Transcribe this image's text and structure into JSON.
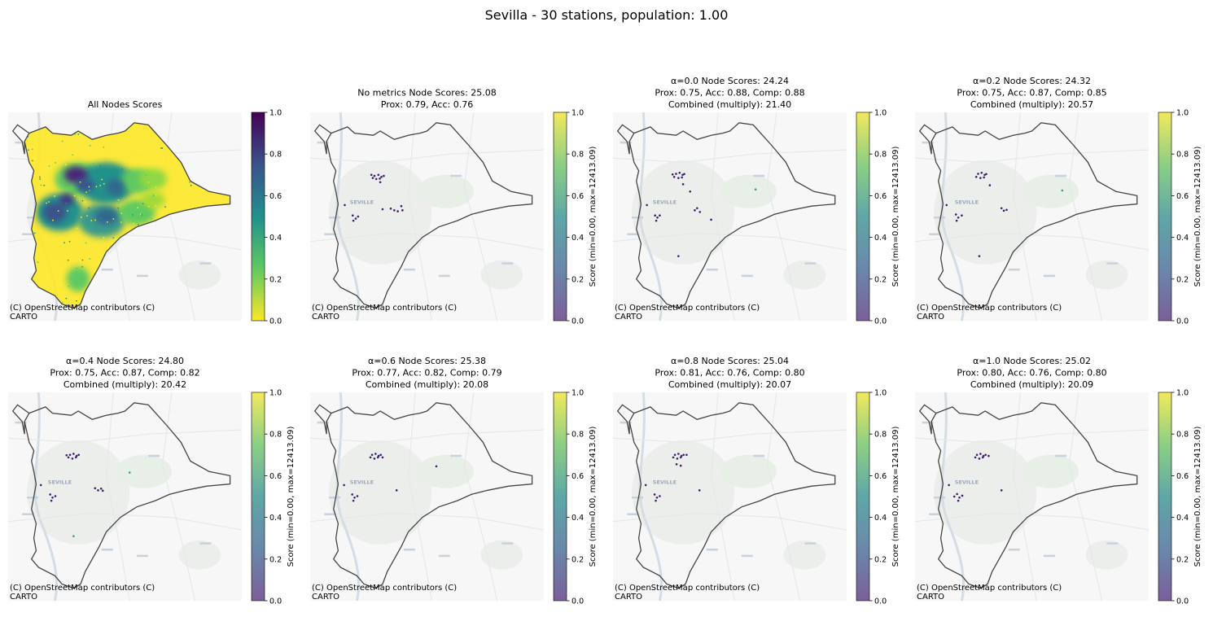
{
  "figure": {
    "suptitle": "Sevilla - 30 stations, population: 1.00"
  },
  "colors": {
    "boundary": "#444444",
    "map_bg": "#f6f7f6",
    "river": "#d4dde3",
    "road": "#e6e8ea",
    "urban": "#eceeec",
    "park": "#e7efe7",
    "station": "#3b1f6e",
    "station_alt": "#2aa58a"
  },
  "map_labels": {
    "city": "SEVILLE",
    "attribution_line1": "(C) OpenStreetMap contributors (C)",
    "attribution_line2": "CARTO"
  },
  "colorbar": {
    "ticks": [
      "0.0",
      "0.2",
      "0.4",
      "0.6",
      "0.8",
      "1.0"
    ],
    "label": "Score (min=0.00, max=12413.09)"
  },
  "panels": [
    {
      "title_lines": [
        "All Nodes Scores"
      ],
      "mode": "heat",
      "cmap": "viridis_r"
    },
    {
      "title_lines": [
        "No metrics Node Scores: 25.08",
        "Prox: 0.79, Acc: 0.76"
      ],
      "mode": "points",
      "cmap": "viridis",
      "colorbar_label": true,
      "points": [
        [
          0.275,
          0.305
        ],
        [
          0.292,
          0.3
        ],
        [
          0.305,
          0.31
        ],
        [
          0.268,
          0.315
        ],
        [
          0.283,
          0.32
        ],
        [
          0.298,
          0.318
        ],
        [
          0.315,
          0.305
        ],
        [
          0.262,
          0.3
        ],
        [
          0.3,
          0.335
        ],
        [
          0.148,
          0.445
        ],
        [
          0.182,
          0.495
        ],
        [
          0.195,
          0.51
        ],
        [
          0.205,
          0.5
        ],
        [
          0.185,
          0.52
        ],
        [
          0.31,
          0.465
        ],
        [
          0.36,
          0.47
        ],
        [
          0.375,
          0.475
        ],
        [
          0.345,
          0.462
        ],
        [
          0.39,
          0.45
        ],
        [
          0.395,
          0.47
        ]
      ],
      "alt_points": []
    },
    {
      "title_lines": [
        "α=0.0 Node Scores: 24.24",
        "Prox: 0.75, Acc: 0.88, Comp: 0.88",
        "Combined (multiply): 21.40"
      ],
      "mode": "points",
      "cmap": "viridis",
      "colorbar_label": true,
      "points": [
        [
          0.27,
          0.295
        ],
        [
          0.285,
          0.29
        ],
        [
          0.298,
          0.3
        ],
        [
          0.262,
          0.31
        ],
        [
          0.28,
          0.315
        ],
        [
          0.295,
          0.312
        ],
        [
          0.305,
          0.296
        ],
        [
          0.255,
          0.298
        ],
        [
          0.3,
          0.345
        ],
        [
          0.33,
          0.38
        ],
        [
          0.145,
          0.445
        ],
        [
          0.18,
          0.495
        ],
        [
          0.19,
          0.505
        ],
        [
          0.2,
          0.495
        ],
        [
          0.185,
          0.52
        ],
        [
          0.35,
          0.47
        ],
        [
          0.36,
          0.46
        ],
        [
          0.372,
          0.478
        ],
        [
          0.42,
          0.515
        ],
        [
          0.28,
          0.69
        ]
      ],
      "alt_points": [
        [
          0.61,
          0.37
        ]
      ]
    },
    {
      "title_lines": [
        "α=0.2 Node Scores: 24.32",
        "Prox: 0.75, Acc: 0.87, Comp: 0.85",
        "Combined (multiply): 20.57"
      ],
      "mode": "points",
      "cmap": "viridis",
      "colorbar_label": true,
      "points": [
        [
          0.27,
          0.295
        ],
        [
          0.285,
          0.29
        ],
        [
          0.298,
          0.3
        ],
        [
          0.262,
          0.31
        ],
        [
          0.28,
          0.315
        ],
        [
          0.295,
          0.312
        ],
        [
          0.305,
          0.296
        ],
        [
          0.32,
          0.35
        ],
        [
          0.135,
          0.445
        ],
        [
          0.175,
          0.49
        ],
        [
          0.185,
          0.505
        ],
        [
          0.2,
          0.495
        ],
        [
          0.178,
          0.52
        ],
        [
          0.37,
          0.46
        ],
        [
          0.38,
          0.472
        ],
        [
          0.392,
          0.468
        ],
        [
          0.275,
          0.69
        ]
      ],
      "alt_points": [
        [
          0.63,
          0.375
        ]
      ]
    },
    {
      "title_lines": [
        "α=0.4 Node Scores: 24.80",
        "Prox: 0.75, Acc: 0.87, Comp: 0.82",
        "Combined (multiply): 20.42"
      ],
      "mode": "points",
      "cmap": "viridis",
      "colorbar_label": true,
      "points": [
        [
          0.265,
          0.3
        ],
        [
          0.28,
          0.295
        ],
        [
          0.293,
          0.305
        ],
        [
          0.258,
          0.312
        ],
        [
          0.275,
          0.318
        ],
        [
          0.29,
          0.312
        ],
        [
          0.302,
          0.3
        ],
        [
          0.25,
          0.302
        ],
        [
          0.14,
          0.445
        ],
        [
          0.18,
          0.49
        ],
        [
          0.19,
          0.505
        ],
        [
          0.202,
          0.498
        ],
        [
          0.185,
          0.52
        ],
        [
          0.372,
          0.46
        ],
        [
          0.385,
          0.47
        ],
        [
          0.398,
          0.462
        ],
        [
          0.405,
          0.472
        ]
      ],
      "alt_points": [
        [
          0.52,
          0.385
        ],
        [
          0.28,
          0.69
        ]
      ]
    },
    {
      "title_lines": [
        "α=0.6 Node Scores: 25.38",
        "Prox: 0.77, Acc: 0.82, Comp: 0.79",
        "Combined (multiply): 20.08"
      ],
      "mode": "points",
      "cmap": "viridis",
      "colorbar_label": true,
      "points": [
        [
          0.265,
          0.3
        ],
        [
          0.28,
          0.295
        ],
        [
          0.293,
          0.305
        ],
        [
          0.258,
          0.312
        ],
        [
          0.275,
          0.318
        ],
        [
          0.29,
          0.312
        ],
        [
          0.302,
          0.3
        ],
        [
          0.31,
          0.312
        ],
        [
          0.145,
          0.445
        ],
        [
          0.18,
          0.49
        ],
        [
          0.19,
          0.505
        ],
        [
          0.202,
          0.498
        ],
        [
          0.185,
          0.52
        ],
        [
          0.37,
          0.47
        ],
        [
          0.54,
          0.355
        ]
      ],
      "alt_points": []
    },
    {
      "title_lines": [
        "α=0.8 Node Scores: 25.04",
        "Prox: 0.81, Acc: 0.76, Comp: 0.80",
        "Combined (multiply): 20.07"
      ],
      "mode": "points",
      "cmap": "viridis",
      "colorbar_label": true,
      "points": [
        [
          0.265,
          0.3
        ],
        [
          0.28,
          0.295
        ],
        [
          0.293,
          0.305
        ],
        [
          0.258,
          0.312
        ],
        [
          0.275,
          0.318
        ],
        [
          0.29,
          0.312
        ],
        [
          0.302,
          0.3
        ],
        [
          0.315,
          0.3
        ],
        [
          0.272,
          0.345
        ],
        [
          0.29,
          0.352
        ],
        [
          0.14,
          0.445
        ],
        [
          0.178,
          0.49
        ],
        [
          0.188,
          0.505
        ],
        [
          0.2,
          0.498
        ],
        [
          0.183,
          0.52
        ],
        [
          0.37,
          0.47
        ]
      ],
      "alt_points": []
    },
    {
      "title_lines": [
        "α=1.0 Node Scores: 25.02",
        "Prox: 0.80, Acc: 0.76, Comp: 0.80",
        "Combined (multiply): 20.09"
      ],
      "mode": "points",
      "cmap": "viridis",
      "colorbar_label": true,
      "points": [
        [
          0.265,
          0.3
        ],
        [
          0.28,
          0.295
        ],
        [
          0.293,
          0.305
        ],
        [
          0.258,
          0.312
        ],
        [
          0.275,
          0.318
        ],
        [
          0.29,
          0.312
        ],
        [
          0.302,
          0.3
        ],
        [
          0.315,
          0.305
        ],
        [
          0.145,
          0.445
        ],
        [
          0.18,
          0.488
        ],
        [
          0.19,
          0.505
        ],
        [
          0.202,
          0.496
        ],
        [
          0.185,
          0.52
        ],
        [
          0.168,
          0.5
        ],
        [
          0.37,
          0.47
        ]
      ],
      "alt_points": []
    }
  ]
}
